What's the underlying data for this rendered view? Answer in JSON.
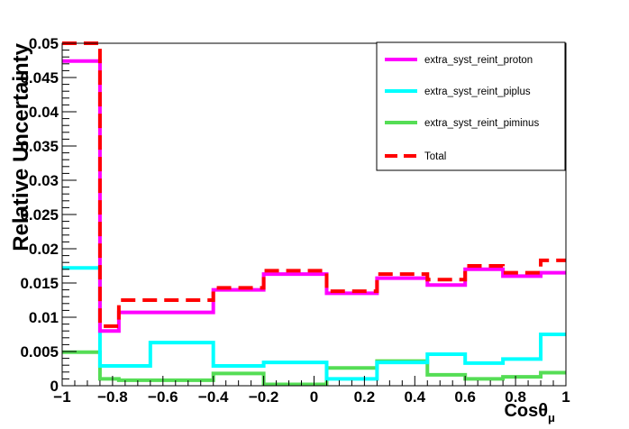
{
  "chart_data": {
    "type": "line",
    "title": "",
    "xlabel": "Cosθ",
    "xlabel_sub": "μ",
    "ylabel": "Relative Uncertainty",
    "xlim": [
      -1,
      1
    ],
    "ylim": [
      0,
      0.05
    ],
    "x_ticks": [
      -1,
      -0.8,
      -0.6,
      -0.4,
      -0.2,
      0,
      0.2,
      0.4,
      0.6,
      0.8,
      1
    ],
    "x_tick_labels": [
      "−1",
      "−0.8",
      "−0.6",
      "−0.4",
      "−0.2",
      "0",
      "0.2",
      "0.4",
      "0.6",
      "0.8",
      "1"
    ],
    "y_ticks": [
      0,
      0.005,
      0.01,
      0.015,
      0.02,
      0.025,
      0.03,
      0.035,
      0.04,
      0.045,
      0.05
    ],
    "y_tick_labels": [
      "0",
      "0.005",
      "0.01",
      "0.015",
      "0.02",
      "0.025",
      "0.03",
      "0.035",
      "0.04",
      "0.045",
      "0.05"
    ],
    "grid": false,
    "legend_position": "top-right",
    "bin_edges": [
      -1,
      -0.85,
      -0.775,
      -0.65,
      -0.4,
      -0.2,
      0.05,
      0.25,
      0.45,
      0.6,
      0.75,
      0.9,
      1
    ],
    "series": [
      {
        "name": "extra_syst_reint_proton",
        "color": "#ff00ff",
        "style": "solid",
        "values": [
          0.0474,
          0.008,
          0.0107,
          0.0107,
          0.014,
          0.0163,
          0.0135,
          0.0157,
          0.0147,
          0.017,
          0.016,
          0.0165
        ]
      },
      {
        "name": "extra_syst_reint_piplus",
        "color": "#00ffff",
        "style": "solid",
        "values": [
          0.0172,
          0.0029,
          0.0029,
          0.0063,
          0.0029,
          0.0034,
          0.001,
          0.0034,
          0.0046,
          0.0033,
          0.0039,
          0.0075
        ]
      },
      {
        "name": "extra_syst_reint_piminus",
        "color": "#55dd55",
        "style": "solid",
        "values": [
          0.0049,
          0.001,
          0.0008,
          0.0008,
          0.0018,
          0.0002,
          0.0026,
          0.0036,
          0.0016,
          0.001,
          0.0013,
          0.0019
        ]
      },
      {
        "name": "Total",
        "color": "#ff0000",
        "style": "dashed",
        "values": [
          0.05,
          0.0087,
          0.0125,
          0.0125,
          0.0143,
          0.0168,
          0.0138,
          0.0163,
          0.0155,
          0.0175,
          0.0165,
          0.0183
        ]
      }
    ]
  }
}
